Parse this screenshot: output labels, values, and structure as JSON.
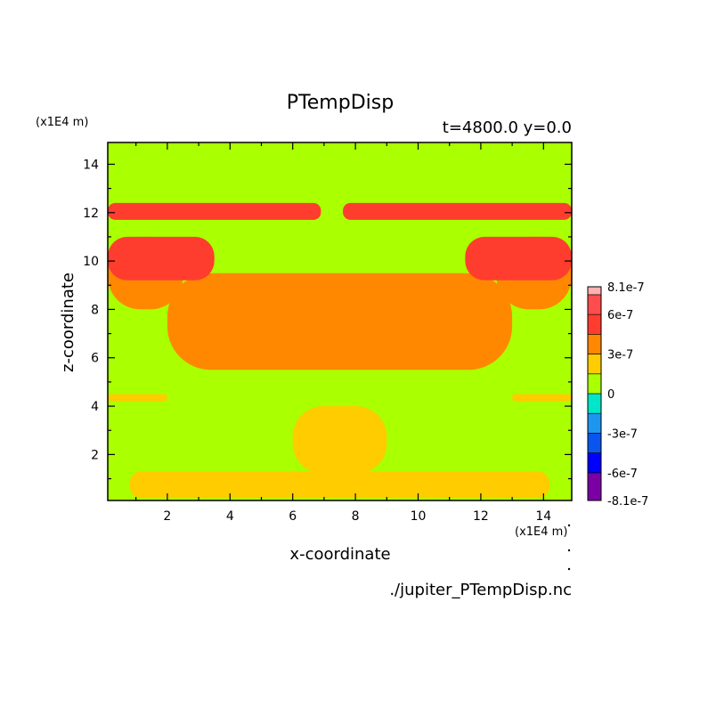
{
  "chart_data": {
    "type": "heatmap",
    "title": "PTempDisp",
    "time_label": "t=4800.0 y=0.0",
    "xlabel": "x-coordinate",
    "ylabel": "z-coordinate",
    "x_unit": "(x1E4 m)",
    "y_unit": "(x1E4 m)",
    "file_label": "./jupiter_PTempDisp.nc",
    "xlim": [
      0.1,
      14.9
    ],
    "ylim": [
      0.1,
      14.9
    ],
    "x_ticks": [
      "2",
      "4",
      "6",
      "8",
      "10",
      "12",
      "14"
    ],
    "y_ticks": [
      "2",
      "4",
      "6",
      "8",
      "10",
      "12",
      "14"
    ],
    "colorbar": {
      "levels": [
        -8.1e-07,
        -6e-07,
        -4.5e-07,
        -3e-07,
        -1.5e-07,
        0,
        1.5e-07,
        3e-07,
        4.5e-07,
        6e-07,
        7.5e-07,
        8.1e-07
      ],
      "colors": [
        "#7a00a6",
        "#0000ff",
        "#0a55f0",
        "#1e96f0",
        "#00e6c8",
        "#aaff00",
        "#ffcc00",
        "#ff8800",
        "#ff3d2e",
        "#ff4d4d",
        "#ffb0b0"
      ],
      "tick_labels": [
        "8.1e-7",
        "6e-7",
        "3e-7",
        "0",
        "-3e-7",
        "-6e-7",
        "-8.1e-7"
      ]
    },
    "regions": [
      {
        "level": 1,
        "z_range": [
          0.2,
          1.3
        ],
        "x_range": [
          0.8,
          14.2
        ],
        "note": "bottom band"
      },
      {
        "level": 1,
        "z_range": [
          1.2,
          4.0
        ],
        "x_range": [
          6.0,
          9.0
        ],
        "note": "central base bump"
      },
      {
        "level": 1,
        "z_range": [
          4.2,
          4.5
        ],
        "x_range": [
          0.1,
          2.0
        ],
        "note": "left band"
      },
      {
        "level": 1,
        "z_range": [
          4.2,
          4.5
        ],
        "x_range": [
          13.0,
          14.9
        ],
        "note": "right band"
      },
      {
        "level": 2,
        "z_range": [
          5.5,
          9.5
        ],
        "x_range": [
          2.0,
          13.0
        ],
        "note": "central plume"
      },
      {
        "level": 2,
        "z_range": [
          8.0,
          11.0
        ],
        "x_range": [
          0.1,
          2.5
        ],
        "note": "left flank"
      },
      {
        "level": 2,
        "z_range": [
          8.0,
          11.0
        ],
        "x_range": [
          12.5,
          14.9
        ],
        "note": "right flank"
      },
      {
        "level": 3,
        "z_range": [
          9.2,
          11.0
        ],
        "x_range": [
          0.1,
          3.5
        ],
        "note": "left cap"
      },
      {
        "level": 3,
        "z_range": [
          9.2,
          11.0
        ],
        "x_range": [
          11.5,
          14.9
        ],
        "note": "right cap"
      },
      {
        "level": 3,
        "z_range": [
          11.7,
          12.4
        ],
        "x_range": [
          0.1,
          6.9
        ],
        "note": "upper left streak"
      },
      {
        "level": 3,
        "z_range": [
          11.7,
          12.4
        ],
        "x_range": [
          7.6,
          14.9
        ],
        "note": "upper right streak"
      }
    ]
  }
}
